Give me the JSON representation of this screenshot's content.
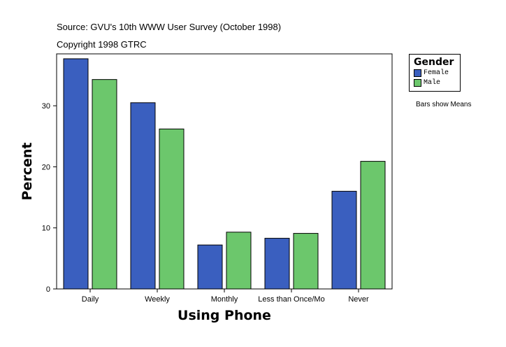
{
  "header": {
    "source": "Source: GVU's 10th WWW User Survey (October 1998)",
    "copyright": "Copyright 1998 GTRC"
  },
  "legend": {
    "title": "Gender",
    "items": [
      {
        "label": "Female",
        "color": "#3a5fbf"
      },
      {
        "label": "Male",
        "color": "#6cc76c"
      }
    ]
  },
  "note": "Bars show Means",
  "chart_data": {
    "type": "bar",
    "title": "",
    "xlabel": "Using Phone",
    "ylabel": "Percent",
    "categories": [
      "Daily",
      "Weekly",
      "Monthly",
      "Less than Once/Mo",
      "Never"
    ],
    "series": [
      {
        "name": "Female",
        "color": "#3a5fbf",
        "values": [
          37.7,
          30.5,
          7.2,
          8.3,
          16.0
        ]
      },
      {
        "name": "Male",
        "color": "#6cc76c",
        "values": [
          34.3,
          26.2,
          9.3,
          9.1,
          20.9
        ]
      }
    ],
    "ylim": [
      0,
      38.5
    ],
    "yticks": [
      0,
      10,
      20,
      30
    ],
    "grid": false,
    "legend_position": "right"
  }
}
